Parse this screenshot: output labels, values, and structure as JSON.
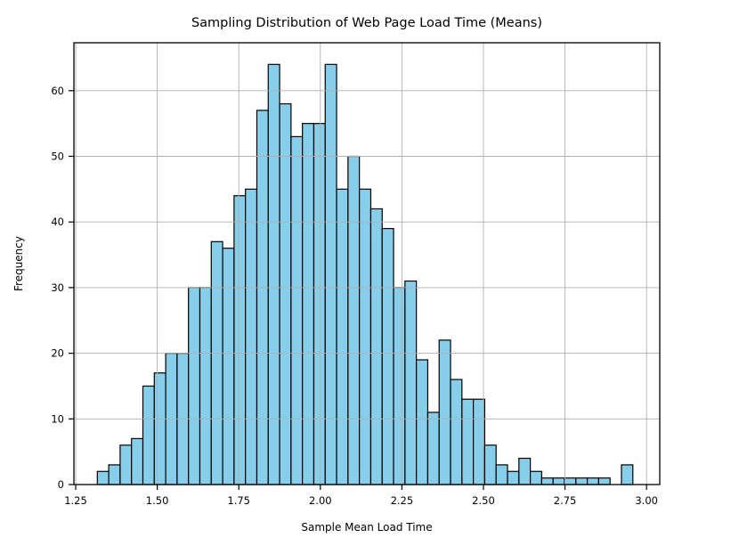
{
  "title": "Sampling Distribution of Web Page Load Time (Means)",
  "xlabel": "Sample Mean Load Time",
  "ylabel": "Frequency",
  "colors": {
    "bar_fill": "#87CEEB",
    "bar_edge": "#000000",
    "grid": "#b0b0b0",
    "spine": "#000000",
    "background": "#ffffff"
  },
  "chart_data": {
    "type": "bar",
    "subtype": "histogram",
    "title": "Sampling Distribution of Web Page Load Time (Means)",
    "xlabel": "Sample Mean Load Time",
    "ylabel": "Frequency",
    "bin_start": 1.3163,
    "bin_width": 0.03493,
    "values": [
      2,
      3,
      6,
      7,
      15,
      17,
      20,
      20,
      30,
      30,
      37,
      36,
      44,
      45,
      57,
      64,
      58,
      53,
      55,
      55,
      64,
      45,
      50,
      45,
      42,
      39,
      30,
      31,
      19,
      11,
      22,
      16,
      13,
      13,
      6,
      3,
      2,
      4,
      2,
      1,
      1,
      1,
      1,
      1,
      1,
      0,
      3
    ],
    "x_ticks": [
      1.25,
      1.5,
      1.75,
      2.0,
      2.25,
      2.5,
      2.75,
      3.0
    ],
    "x_tick_labels": [
      "1.25",
      "1.50",
      "1.75",
      "2.00",
      "2.25",
      "2.50",
      "2.75",
      "3.00"
    ],
    "y_ticks": [
      0,
      10,
      20,
      30,
      40,
      50,
      60
    ],
    "y_tick_labels": [
      "0",
      "10",
      "20",
      "30",
      "40",
      "50",
      "60"
    ],
    "xlim": [
      1.2445,
      3.0405
    ],
    "ylim": [
      0,
      67.3
    ],
    "grid": true,
    "grid_above_bars": true,
    "legend": null
  }
}
